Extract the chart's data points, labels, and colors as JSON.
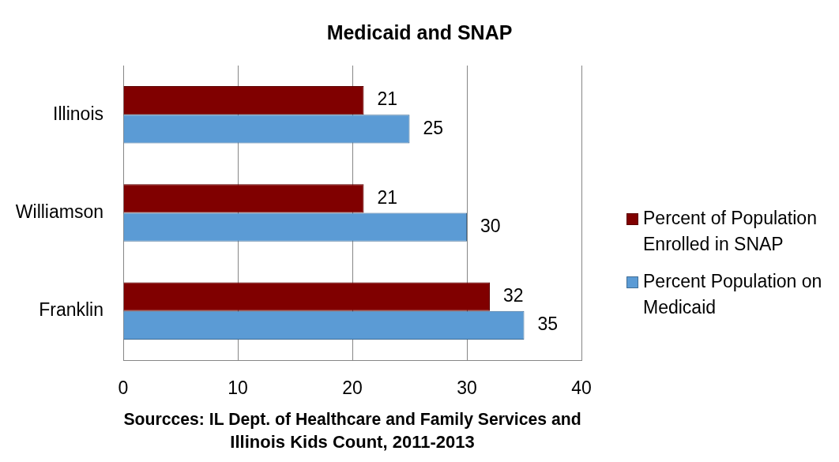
{
  "chart_data": {
    "type": "bar",
    "orientation": "horizontal",
    "title": "Medicaid and SNAP",
    "xlabel": "Sourcces: IL Dept. of Healthcare and Family Services and Illinois Kids Count, 2011-2013",
    "categories": [
      "Illinois",
      "Williamson",
      "Franklin"
    ],
    "series": [
      {
        "name": "Percent of Population Enrolled in SNAP",
        "color": "#800000",
        "values": [
          21,
          21,
          32
        ]
      },
      {
        "name": "Percent Population on Medicaid",
        "color": "#5b9bd5",
        "values": [
          25,
          30,
          35
        ]
      }
    ],
    "xlim": [
      0,
      40
    ],
    "xticks": [
      0,
      10,
      20,
      30,
      40
    ],
    "grid": "x",
    "legend": "right",
    "data_labels": true
  }
}
